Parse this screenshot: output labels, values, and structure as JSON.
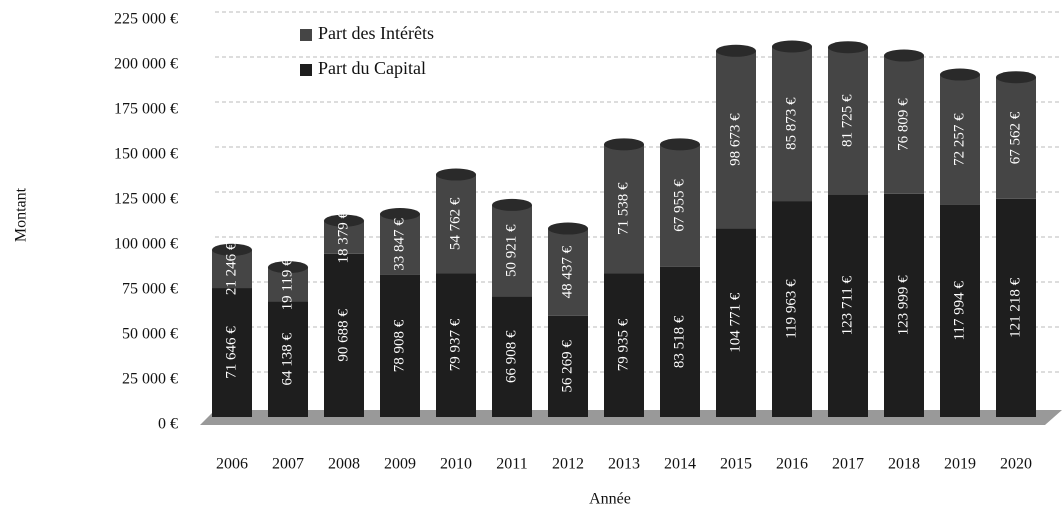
{
  "chart_data": {
    "type": "stacked_bar",
    "x_label": "Année",
    "y_label": "Montant",
    "categories": [
      "2006",
      "2007",
      "2008",
      "2009",
      "2010",
      "2011",
      "2012",
      "2013",
      "2014",
      "2015",
      "2016",
      "2017",
      "2018",
      "2019",
      "2020"
    ],
    "series": [
      {
        "name": "Part du Capital",
        "color": "#1e1e1e",
        "values": [
          71646,
          64138,
          90688,
          78908,
          79937,
          66908,
          56269,
          79935,
          83518,
          104771,
          119963,
          123711,
          123999,
          117994,
          121218
        ],
        "value_labels": [
          "71 646 €",
          "64 138 €",
          "90 688 €",
          "78 908 €",
          "79 937 €",
          "66 908 €",
          "56 269 €",
          "79 935 €",
          "83 518 €",
          "104 771 €",
          "119 963 €",
          "123 711 €",
          "123 999 €",
          "117 994 €",
          "121 218 €"
        ]
      },
      {
        "name": "Part des Intérêts",
        "color": "#454545",
        "values": [
          21246,
          19119,
          18379,
          33847,
          54762,
          50921,
          48437,
          71538,
          67955,
          98673,
          85873,
          81725,
          76809,
          72257,
          67562
        ],
        "value_labels": [
          "21 246 €",
          "19 119 €",
          "18 379 €",
          "33 847 €",
          "54 762 €",
          "50 921 €",
          "48 437 €",
          "71 538 €",
          "67 955 €",
          "98 673 €",
          "85 873 €",
          "81 725 €",
          "76 809 €",
          "72 257 €",
          "67 562 €"
        ]
      }
    ],
    "ylim": [
      0,
      225000
    ],
    "yticks": [
      {
        "value": 0,
        "label": "0 €"
      },
      {
        "value": 25000,
        "label": "25 000 €"
      },
      {
        "value": 50000,
        "label": "50 000 €"
      },
      {
        "value": 75000,
        "label": "75 000 €"
      },
      {
        "value": 100000,
        "label": "100 000 €"
      },
      {
        "value": 125000,
        "label": "125 000 €"
      },
      {
        "value": 150000,
        "label": "150 000 €"
      },
      {
        "value": 175000,
        "label": "175 000 €"
      },
      {
        "value": 200000,
        "label": "200 000 €"
      },
      {
        "value": 225000,
        "label": "225 000 €"
      }
    ],
    "grid": true
  }
}
